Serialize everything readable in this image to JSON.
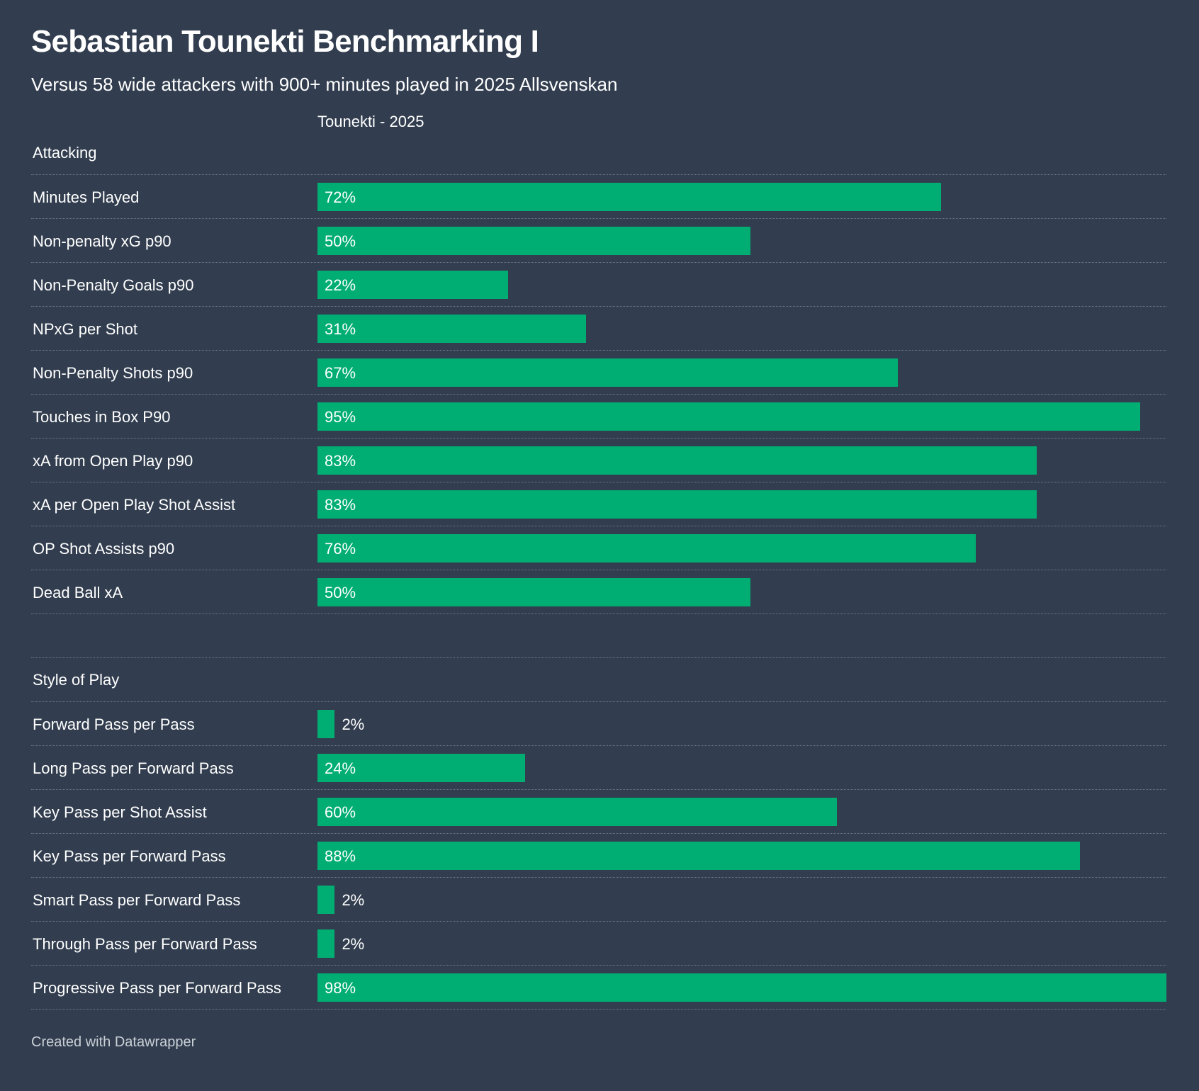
{
  "title": "Sebastian Tounekti Benchmarking I",
  "subtitle": "Versus 58 wide attackers with 900+ minutes played in 2025 Allsvenskan",
  "column_header": "Tounekti - 2025",
  "footer": "Created with Datawrapper",
  "colors": {
    "background": "#323e4f",
    "bar": "#00ad72",
    "text": "#ffffff"
  },
  "chart_data": {
    "type": "bar",
    "orientation": "horizontal",
    "value_unit": "%",
    "xlim": [
      0,
      100
    ],
    "groups": [
      {
        "name": "Attacking",
        "categories": [
          "Minutes Played",
          "Non-penalty xG p90",
          "Non-Penalty Goals p90",
          "NPxG per Shot",
          "Non-Penalty Shots p90",
          "Touches in Box P90",
          "xA from Open Play p90",
          "xA per Open Play Shot Assist",
          "OP Shot Assists p90",
          "Dead Ball xA"
        ],
        "values": [
          72,
          50,
          22,
          31,
          67,
          95,
          83,
          83,
          76,
          50
        ]
      },
      {
        "name": "Style of Play",
        "categories": [
          "Forward Pass per Pass",
          "Long Pass per Forward Pass",
          "Key Pass per Shot Assist",
          "Key Pass per Forward Pass",
          "Smart Pass per Forward Pass",
          "Through Pass per Forward Pass",
          "Progressive Pass per Forward Pass"
        ],
        "values": [
          2,
          24,
          60,
          88,
          2,
          2,
          98
        ]
      }
    ]
  }
}
